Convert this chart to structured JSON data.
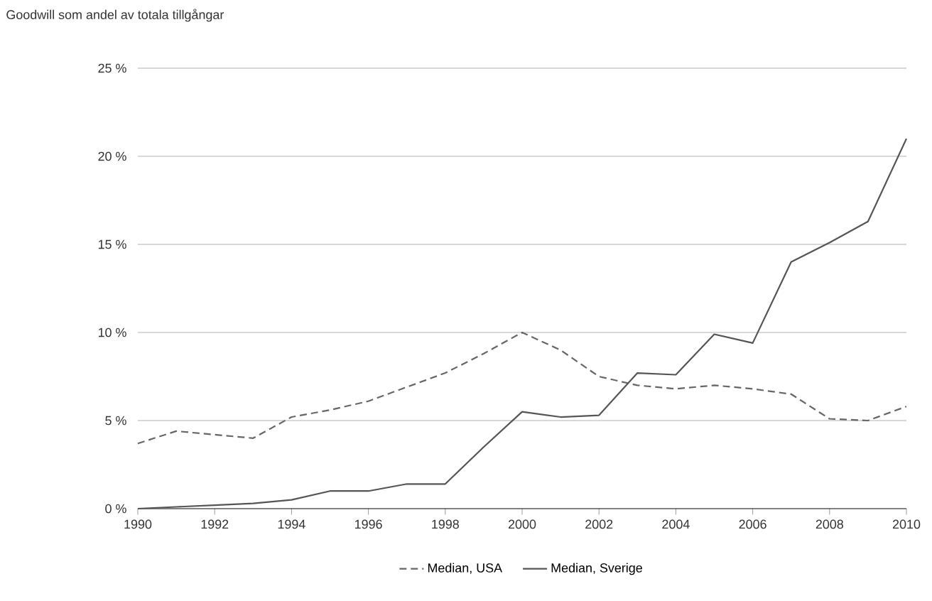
{
  "chart_data": {
    "type": "line",
    "title": "Goodwill som andel av totala tillgångar",
    "x": [
      1990,
      1991,
      1992,
      1993,
      1994,
      1995,
      1996,
      1997,
      1998,
      1999,
      2000,
      2001,
      2002,
      2003,
      2004,
      2005,
      2006,
      2007,
      2008,
      2009,
      2010
    ],
    "series": [
      {
        "name": "Median, USA",
        "color": "#666666",
        "line_style": "dashed",
        "values": [
          3.7,
          4.4,
          4.2,
          4.0,
          5.2,
          5.6,
          6.1,
          6.9,
          7.7,
          8.8,
          10.0,
          9.0,
          7.5,
          7.0,
          6.8,
          7.0,
          6.8,
          6.5,
          5.1,
          5.0,
          5.8
        ]
      },
      {
        "name": "Median, Sverige",
        "color": "#555555",
        "line_style": "solid",
        "values": [
          0,
          0.1,
          0.2,
          0.3,
          0.5,
          1.0,
          1.0,
          1.4,
          1.4,
          3.5,
          5.5,
          5.2,
          5.3,
          7.7,
          7.6,
          9.9,
          9.4,
          14.0,
          15.1,
          16.3,
          21.0
        ]
      }
    ],
    "xlim": [
      1990,
      2010
    ],
    "xticks": [
      1990,
      1992,
      1994,
      1996,
      1998,
      2000,
      2002,
      2004,
      2006,
      2008,
      2010
    ],
    "ylim": [
      0,
      25
    ],
    "yticks": [
      {
        "value": 0,
        "label": "0 %"
      },
      {
        "value": 5,
        "label": "5 %"
      },
      {
        "value": 10,
        "label": "10 %"
      },
      {
        "value": 15,
        "label": "15 %"
      },
      {
        "value": 20,
        "label": "20 %"
      },
      {
        "value": 25,
        "label": "25 %"
      }
    ],
    "grid": "y",
    "legend": "bottom",
    "marker": "none"
  }
}
